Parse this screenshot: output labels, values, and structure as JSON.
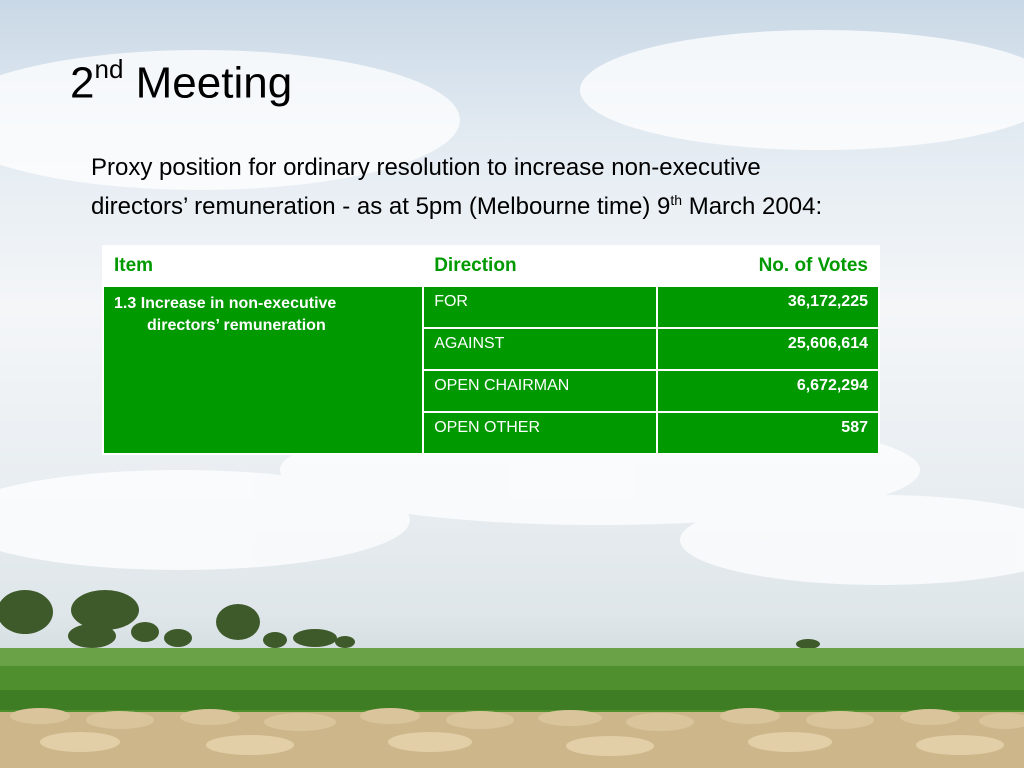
{
  "slide": {
    "title_main": "2",
    "title_sup": "nd",
    "title_rest": " Meeting",
    "subtitle_line1": "Proxy position for ordinary resolution to increase non-executive",
    "subtitle_line2_pre": "directors’ remuneration - as at 5pm (Melbourne time) 9",
    "subtitle_line2_sup": "th",
    "subtitle_line2_post": " March 2004:"
  },
  "table": {
    "headers": [
      "Item",
      "Direction",
      "No. of Votes"
    ],
    "item_line1": "1.3  Increase in non-executive",
    "item_line2": "directors’ remuneration",
    "rows": [
      {
        "direction": "FOR",
        "votes": "36,172,225"
      },
      {
        "direction": "AGAINST",
        "votes": "25,606,614"
      },
      {
        "direction": "OPEN CHAIRMAN",
        "votes": "6,672,294"
      },
      {
        "direction": "OPEN OTHER",
        "votes": "587"
      }
    ]
  },
  "colors": {
    "accent_green": "#009900",
    "header_text": "#009a00"
  }
}
